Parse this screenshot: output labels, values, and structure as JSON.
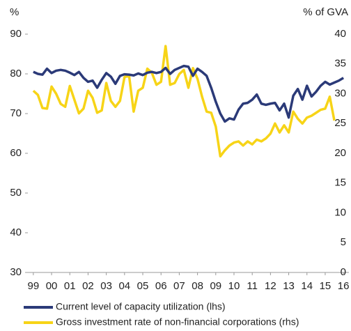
{
  "chart_data": {
    "type": "line",
    "ylabel": "%",
    "y2label": "% of GVA",
    "xlim": [
      1998.7,
      2016.3
    ],
    "xticks": [
      {
        "value": 1999,
        "label": "99"
      },
      {
        "value": 2000,
        "label": "00"
      },
      {
        "value": 2001,
        "label": "01"
      },
      {
        "value": 2002,
        "label": "02"
      },
      {
        "value": 2003,
        "label": "03"
      },
      {
        "value": 2004,
        "label": "04"
      },
      {
        "value": 2005,
        "label": "05"
      },
      {
        "value": 2006,
        "label": "06"
      },
      {
        "value": 2007,
        "label": "07"
      },
      {
        "value": 2008,
        "label": "08"
      },
      {
        "value": 2009,
        "label": "09"
      },
      {
        "value": 2010,
        "label": "10"
      },
      {
        "value": 2011,
        "label": "11"
      },
      {
        "value": 2012,
        "label": "12"
      },
      {
        "value": 2013,
        "label": "13"
      },
      {
        "value": 2014,
        "label": "14"
      },
      {
        "value": 2015,
        "label": "15"
      },
      {
        "value": 2016,
        "label": "16"
      }
    ],
    "ylim": [
      30,
      90
    ],
    "yticks": [
      30,
      40,
      50,
      60,
      70,
      80,
      90
    ],
    "y2lim": [
      0,
      40
    ],
    "y2ticks": [
      0,
      5,
      10,
      15,
      20,
      25,
      30,
      35,
      40
    ],
    "series": [
      {
        "name": "Current level of capacity utilization (lhs)",
        "color": "#2b3a78",
        "x": [
          1999,
          1999.25,
          1999.5,
          1999.75,
          2000,
          2000.25,
          2000.5,
          2000.75,
          2001,
          2001.25,
          2001.5,
          2001.75,
          2002,
          2002.25,
          2002.5,
          2002.75,
          2003,
          2003.25,
          2003.5,
          2003.75,
          2004,
          2004.25,
          2004.5,
          2004.75,
          2005,
          2005.25,
          2005.5,
          2005.75,
          2006,
          2006.25,
          2006.5,
          2006.75,
          2007,
          2007.25,
          2007.5,
          2007.75,
          2008,
          2008.25,
          2008.5,
          2008.75,
          2009,
          2009.25,
          2009.5,
          2009.75,
          2010,
          2010.25,
          2010.5,
          2010.75,
          2011,
          2011.25,
          2011.5,
          2011.75,
          2012,
          2012.25,
          2012.5,
          2012.75,
          2013,
          2013.25,
          2013.5,
          2013.75,
          2014,
          2014.25,
          2014.5,
          2014.75,
          2015,
          2015.25,
          2015.5,
          2015.75,
          2016
        ],
        "values": [
          80.5,
          80.0,
          79.8,
          81.3,
          80.2,
          80.8,
          81.0,
          80.8,
          80.3,
          79.7,
          80.5,
          79.0,
          78.0,
          78.3,
          76.5,
          78.5,
          80.2,
          79.3,
          77.5,
          79.5,
          79.9,
          79.8,
          79.6,
          80.1,
          79.7,
          80.3,
          80.5,
          80.2,
          80.5,
          81.5,
          80.0,
          81.0,
          81.5,
          82.0,
          81.8,
          79.5,
          81.3,
          80.5,
          79.5,
          76.5,
          73.0,
          70.0,
          68.0,
          68.8,
          68.5,
          71.0,
          72.5,
          72.7,
          73.5,
          74.8,
          72.5,
          72.2,
          72.5,
          72.7,
          70.8,
          72.5,
          69.0,
          74.5,
          76.2,
          73.5,
          77.0,
          74.3,
          75.5,
          77.0,
          78.0,
          77.3,
          77.8,
          78.3,
          79.0
        ]
      },
      {
        "name": "Gross investment rate of non-financial corporations (rhs)",
        "color": "#f7d417",
        "axis": "y2",
        "x": [
          1999,
          1999.25,
          1999.5,
          1999.75,
          2000,
          2000.25,
          2000.5,
          2000.75,
          2001,
          2001.25,
          2001.5,
          2001.75,
          2002,
          2002.25,
          2002.5,
          2002.75,
          2003,
          2003.25,
          2003.5,
          2003.75,
          2004,
          2004.25,
          2004.5,
          2004.75,
          2005,
          2005.25,
          2005.5,
          2005.75,
          2006,
          2006.25,
          2006.5,
          2006.75,
          2007,
          2007.25,
          2007.5,
          2007.75,
          2008,
          2008.25,
          2008.5,
          2008.75,
          2009,
          2009.25,
          2009.5,
          2009.75,
          2010,
          2010.25,
          2010.5,
          2010.75,
          2011,
          2011.25,
          2011.5,
          2011.75,
          2012,
          2012.25,
          2012.5,
          2012.75,
          2013,
          2013.25,
          2013.5,
          2013.75,
          2014,
          2014.25,
          2014.5,
          2014.75,
          2015,
          2015.25,
          2015.5
        ],
        "values": [
          30.5,
          29.8,
          27.6,
          27.5,
          31.2,
          30.0,
          28.3,
          27.8,
          31.3,
          29.0,
          26.7,
          27.5,
          30.5,
          29.3,
          26.8,
          27.2,
          31.8,
          28.8,
          27.8,
          28.8,
          32.8,
          33.0,
          27.0,
          30.5,
          31.0,
          34.2,
          33.5,
          31.5,
          32.0,
          38.0,
          31.5,
          31.8,
          33.3,
          34.0,
          31.0,
          34.3,
          32.5,
          29.5,
          27.0,
          26.8,
          24.5,
          19.5,
          20.5,
          21.3,
          21.8,
          22.0,
          21.3,
          22.0,
          21.5,
          22.3,
          22.0,
          22.5,
          23.3,
          25.0,
          23.5,
          24.7,
          23.5,
          27.0,
          25.8,
          25.0,
          26.0,
          26.3,
          26.8,
          27.3,
          27.5,
          29.5,
          25.5
        ]
      }
    ]
  }
}
